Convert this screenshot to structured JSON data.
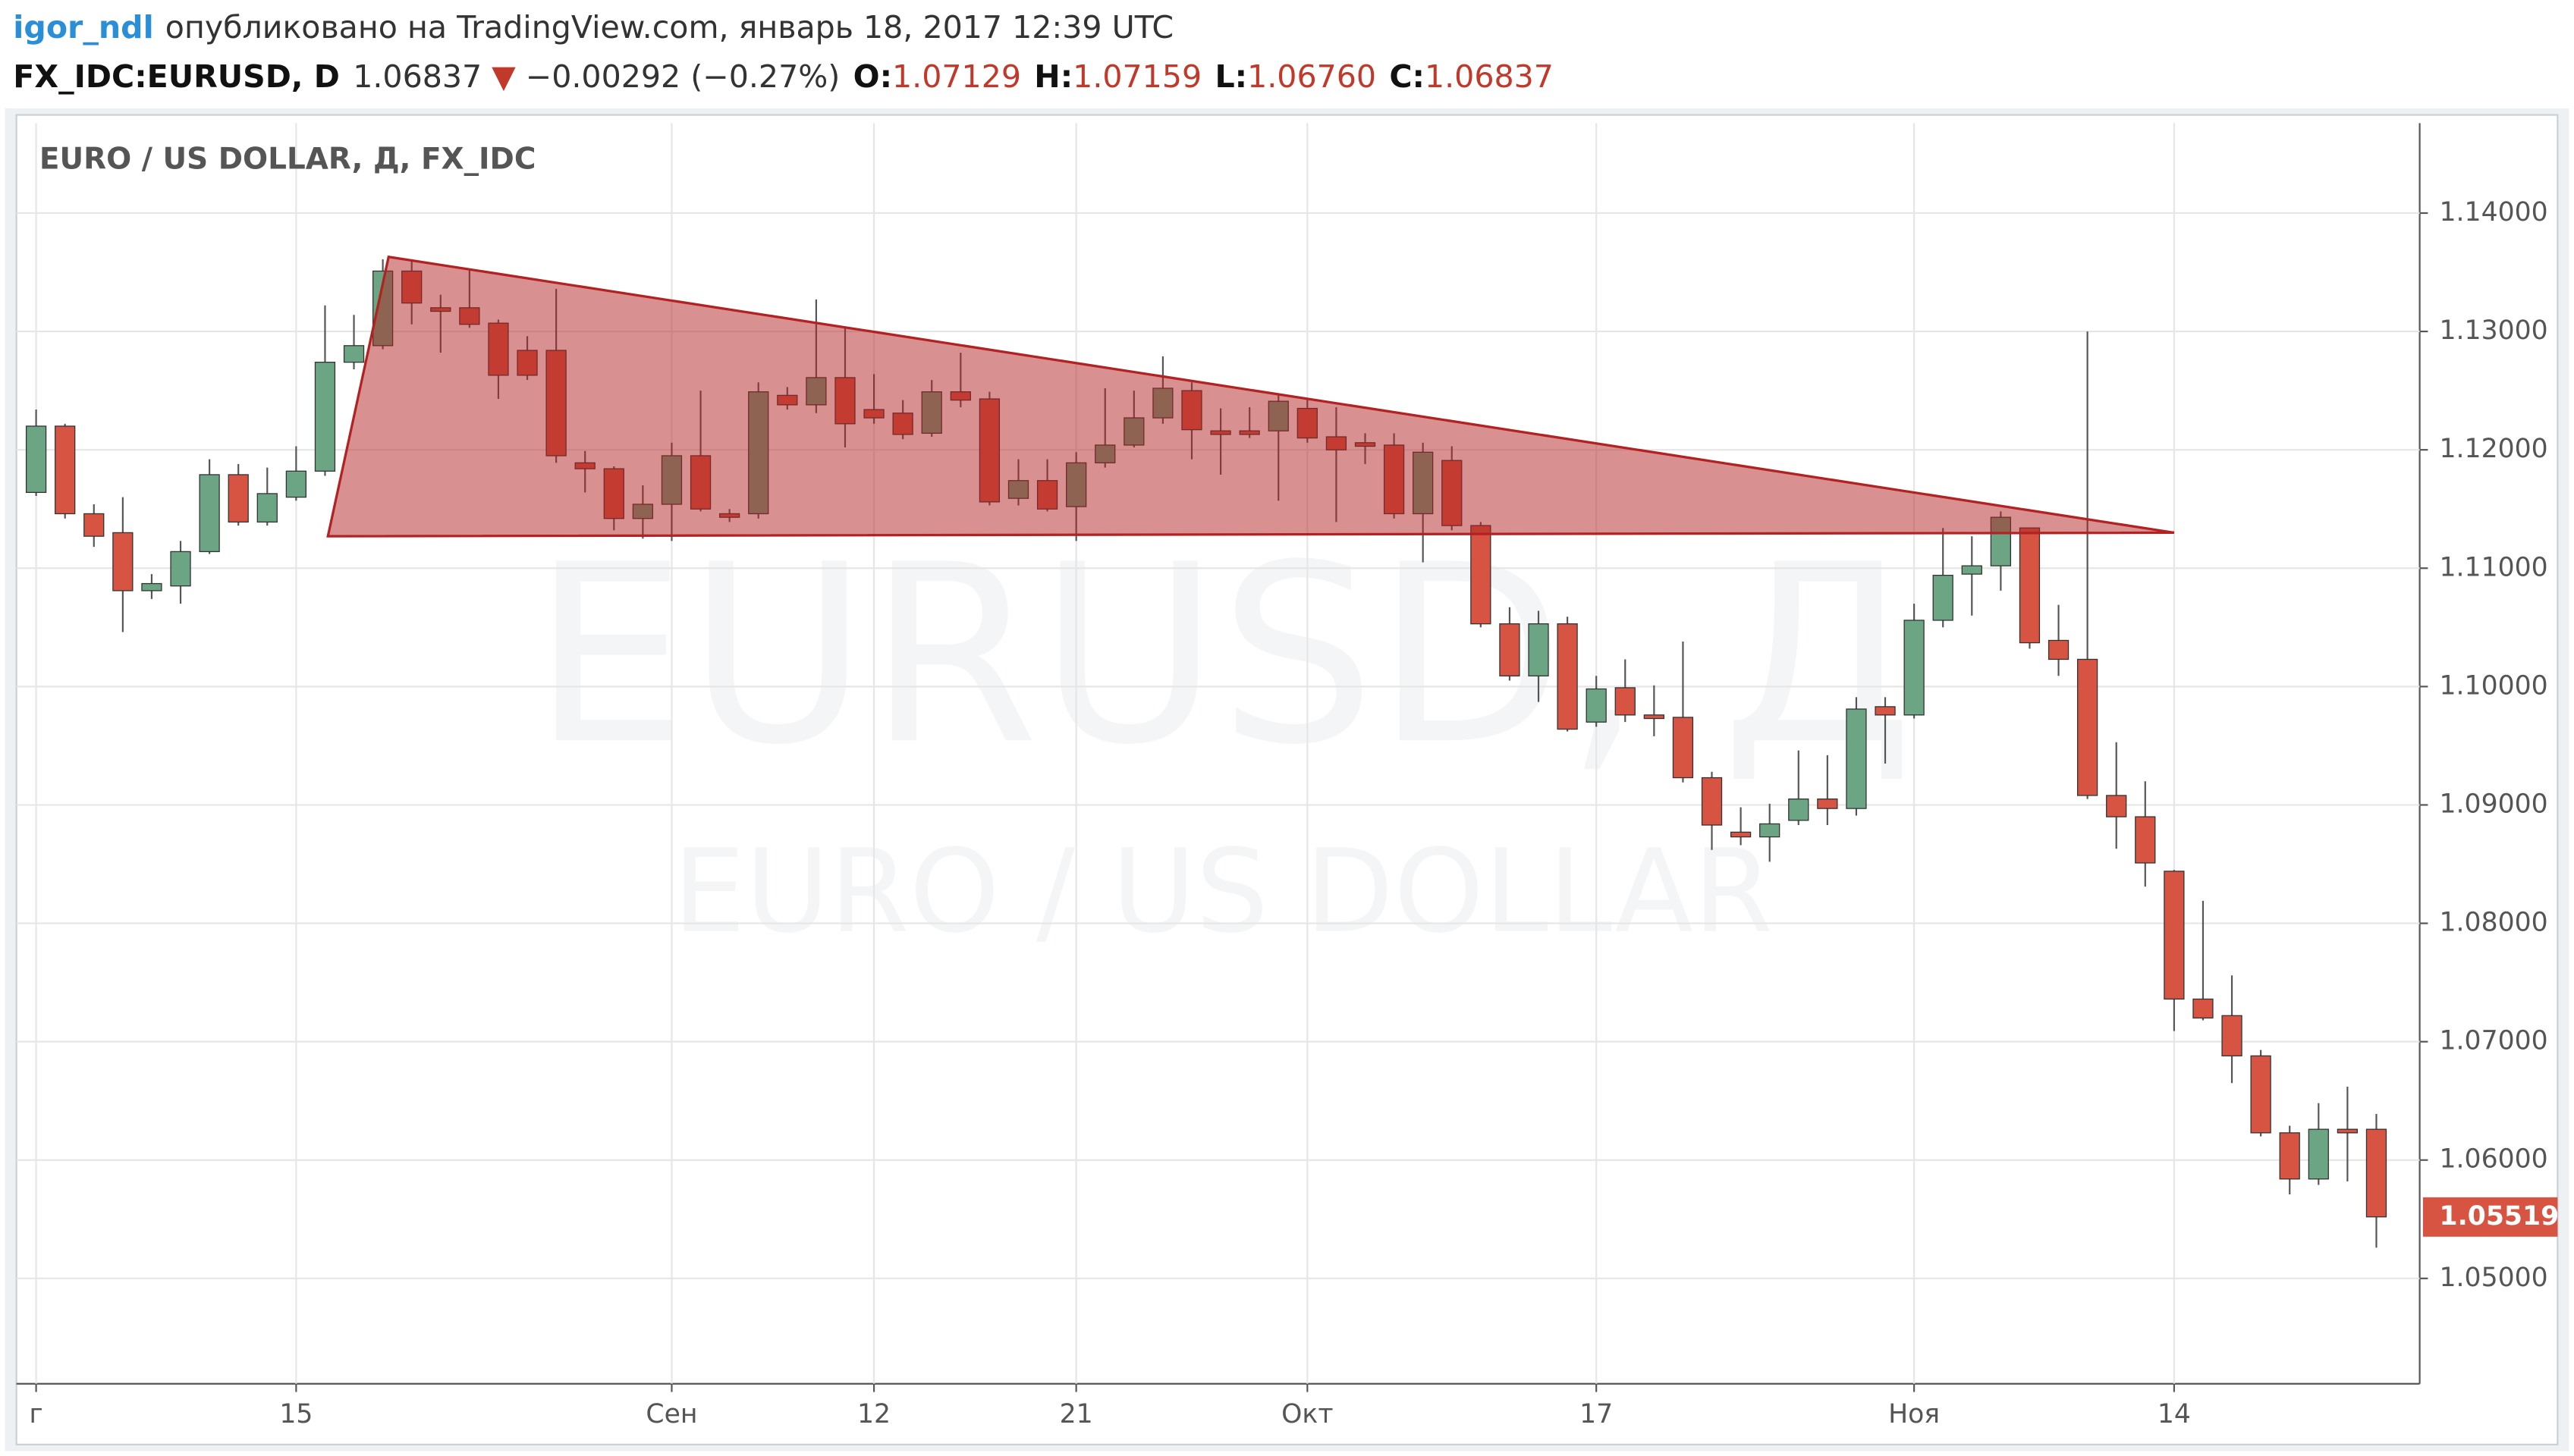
{
  "header": {
    "author": "igor_ndl",
    "published": "опубликовано на TradingView.com, январь 18, 2017 12:39 UTC",
    "symbol": "FX_IDC:EURUSD, D",
    "price": "1.06837",
    "change_arrow": "▼",
    "change": "−0.00292 (−0.27%)",
    "open_label": "O:",
    "open": "1.07129",
    "high_label": "H:",
    "high": "1.07159",
    "low_label": "L:",
    "low": "1.06760",
    "close_label": "C:",
    "close": "1.06837"
  },
  "chart_data": {
    "type": "candlestick",
    "title": "EURO / US DOLLAR, Д, FX_IDC",
    "watermark": [
      "EURUSD, Д",
      "EURO / US DOLLAR"
    ],
    "categories": [
      "г",
      null,
      null,
      null,
      null,
      null,
      null,
      null,
      null,
      "15",
      null,
      null,
      null,
      null,
      null,
      null,
      null,
      null,
      null,
      null,
      null,
      null,
      "Сен",
      null,
      null,
      null,
      null,
      null,
      null,
      "12",
      null,
      null,
      null,
      null,
      null,
      null,
      "21",
      null,
      null,
      null,
      null,
      null,
      null,
      null,
      "Окт",
      null,
      null,
      null,
      null,
      null,
      null,
      null,
      null,
      null,
      "17",
      null,
      null,
      null,
      null,
      null,
      null,
      null,
      null,
      null,
      null,
      "Ноя",
      null,
      null,
      null,
      null,
      null,
      null,
      null,
      null,
      "14",
      null,
      null,
      null,
      null,
      null,
      null,
      null
    ],
    "open": [
      1.1164,
      1.122,
      1.1146,
      1.113,
      1.1081,
      1.1085,
      1.1114,
      1.1179,
      1.1139,
      1.116,
      1.1182,
      1.1274,
      1.1288,
      1.1351,
      1.132,
      1.132,
      1.1307,
      1.1284,
      1.1284,
      1.1189,
      1.1184,
      1.1142,
      1.1154,
      1.1195,
      1.1146,
      1.1146,
      1.1246,
      1.1238,
      1.1261,
      1.1234,
      1.1231,
      1.1214,
      1.1249,
      1.1243,
      1.1159,
      1.1174,
      1.1152,
      1.1189,
      1.1204,
      1.1227,
      1.125,
      1.1216,
      1.1216,
      1.1216,
      1.1235,
      1.1211,
      1.1206,
      1.1204,
      1.1146,
      1.1191,
      1.1136,
      1.1053,
      1.1009,
      1.1053,
      1.097,
      1.0999,
      1.0976,
      1.0974,
      1.0923,
      1.0877,
      1.0873,
      1.0887,
      1.0905,
      1.0897,
      1.0983,
      1.0976,
      1.1056,
      1.1095,
      1.1102,
      1.1134,
      1.1039,
      1.1023,
      1.0908,
      1.089,
      1.0844,
      1.0736,
      1.0722,
      1.0688,
      1.0623,
      1.0584,
      1.0626,
      1.0626
    ],
    "high": [
      1.1234,
      1.1222,
      1.1154,
      1.116,
      1.1095,
      1.1123,
      1.1192,
      1.1188,
      1.1185,
      1.1203,
      1.1322,
      1.1314,
      1.1361,
      1.1361,
      1.1331,
      1.1353,
      1.131,
      1.1296,
      1.1336,
      1.1199,
      1.1186,
      1.117,
      1.1206,
      1.125,
      1.115,
      1.1257,
      1.1253,
      1.1327,
      1.1303,
      1.1264,
      1.1242,
      1.1259,
      1.1282,
      1.1249,
      1.1192,
      1.1192,
      1.1198,
      1.1252,
      1.125,
      1.1279,
      1.1257,
      1.1235,
      1.1236,
      1.1247,
      1.1242,
      1.1236,
      1.1214,
      1.1214,
      1.1206,
      1.1203,
      1.1139,
      1.1067,
      1.1064,
      1.1059,
      1.1009,
      1.1023,
      1.1001,
      1.1038,
      1.0928,
      1.0898,
      1.0901,
      1.0946,
      1.0942,
      1.0991,
      1.0991,
      1.107,
      1.1134,
      1.1127,
      1.1148,
      1.1134,
      1.1069,
      1.13,
      1.0953,
      1.092,
      1.0845,
      1.0819,
      1.0756,
      1.0693,
      1.0629,
      1.0648,
      1.0662,
      1.0639
    ],
    "low": [
      1.1161,
      1.1142,
      1.1118,
      1.1046,
      1.1074,
      1.107,
      1.1112,
      1.1136,
      1.1136,
      1.1157,
      1.1178,
      1.1268,
      1.1285,
      1.1306,
      1.1282,
      1.1303,
      1.1243,
      1.1259,
      1.1189,
      1.1164,
      1.1132,
      1.1125,
      1.1123,
      1.1148,
      1.1139,
      1.1142,
      1.1234,
      1.1231,
      1.1202,
      1.1222,
      1.1209,
      1.1211,
      1.1236,
      1.1153,
      1.1153,
      1.1148,
      1.1123,
      1.1185,
      1.1202,
      1.1222,
      1.1192,
      1.1179,
      1.121,
      1.1157,
      1.1206,
      1.1139,
      1.1188,
      1.1142,
      1.1105,
      1.1132,
      1.105,
      1.1005,
      1.0987,
      1.0962,
      1.0966,
      1.097,
      1.0958,
      1.0919,
      1.0862,
      1.0866,
      1.0852,
      1.0883,
      1.0883,
      1.0891,
      1.0935,
      1.0973,
      1.105,
      1.106,
      1.1081,
      1.1032,
      1.1009,
      1.0905,
      1.0863,
      1.0831,
      1.0709,
      1.0718,
      1.0665,
      1.062,
      1.0571,
      1.0579,
      1.0582,
      1.0526
    ],
    "close": [
      1.122,
      1.1146,
      1.1127,
      1.1081,
      1.1087,
      1.1114,
      1.1179,
      1.1139,
      1.1163,
      1.1182,
      1.1274,
      1.1288,
      1.1351,
      1.1324,
      1.1317,
      1.1306,
      1.1263,
      1.1263,
      1.1195,
      1.1184,
      1.1142,
      1.1154,
      1.1195,
      1.115,
      1.1143,
      1.1249,
      1.1238,
      1.1261,
      1.1222,
      1.1227,
      1.1213,
      1.1249,
      1.1242,
      1.1156,
      1.1174,
      1.115,
      1.1189,
      1.1204,
      1.1227,
      1.1252,
      1.1217,
      1.1213,
      1.1213,
      1.1241,
      1.121,
      1.12,
      1.1203,
      1.1146,
      1.1198,
      1.1136,
      1.1053,
      1.1009,
      1.1053,
      1.0964,
      1.0998,
      1.0976,
      1.0973,
      1.0923,
      1.0883,
      1.0873,
      1.0884,
      1.0905,
      1.0897,
      1.0981,
      1.0976,
      1.1056,
      1.1094,
      1.1102,
      1.1143,
      1.1037,
      1.1023,
      1.0908,
      1.089,
      1.0851,
      1.0736,
      1.072,
      1.0688,
      1.0623,
      1.0584,
      1.0626,
      1.0623,
      1.0552
    ],
    "up_color": "#6ba583",
    "down_color": "#d75442",
    "wick_color": "#555555",
    "ylim": [
      1.0411,
      1.1476
    ],
    "yticks": [
      {
        "value": 1.05,
        "label": "1.05000"
      },
      {
        "value": 1.06,
        "label": "1.06000"
      },
      {
        "value": 1.07,
        "label": "1.07000"
      },
      {
        "value": 1.08,
        "label": "1.08000"
      },
      {
        "value": 1.09,
        "label": "1.09000"
      },
      {
        "value": 1.1,
        "label": "1.10000"
      },
      {
        "value": 1.11,
        "label": "1.11000"
      },
      {
        "value": 1.12,
        "label": "1.12000"
      },
      {
        "value": 1.13,
        "label": "1.13000"
      },
      {
        "value": 1.14,
        "label": "1.14000"
      }
    ],
    "grid": true,
    "last_price": 1.05519,
    "last_price_color": "#d75442",
    "drawing": {
      "type": "triangle",
      "x": [
        12.2,
        10.1,
        74
      ],
      "y": [
        1.1363,
        1.1127,
        1.113
      ],
      "color": "#b22222"
    }
  }
}
